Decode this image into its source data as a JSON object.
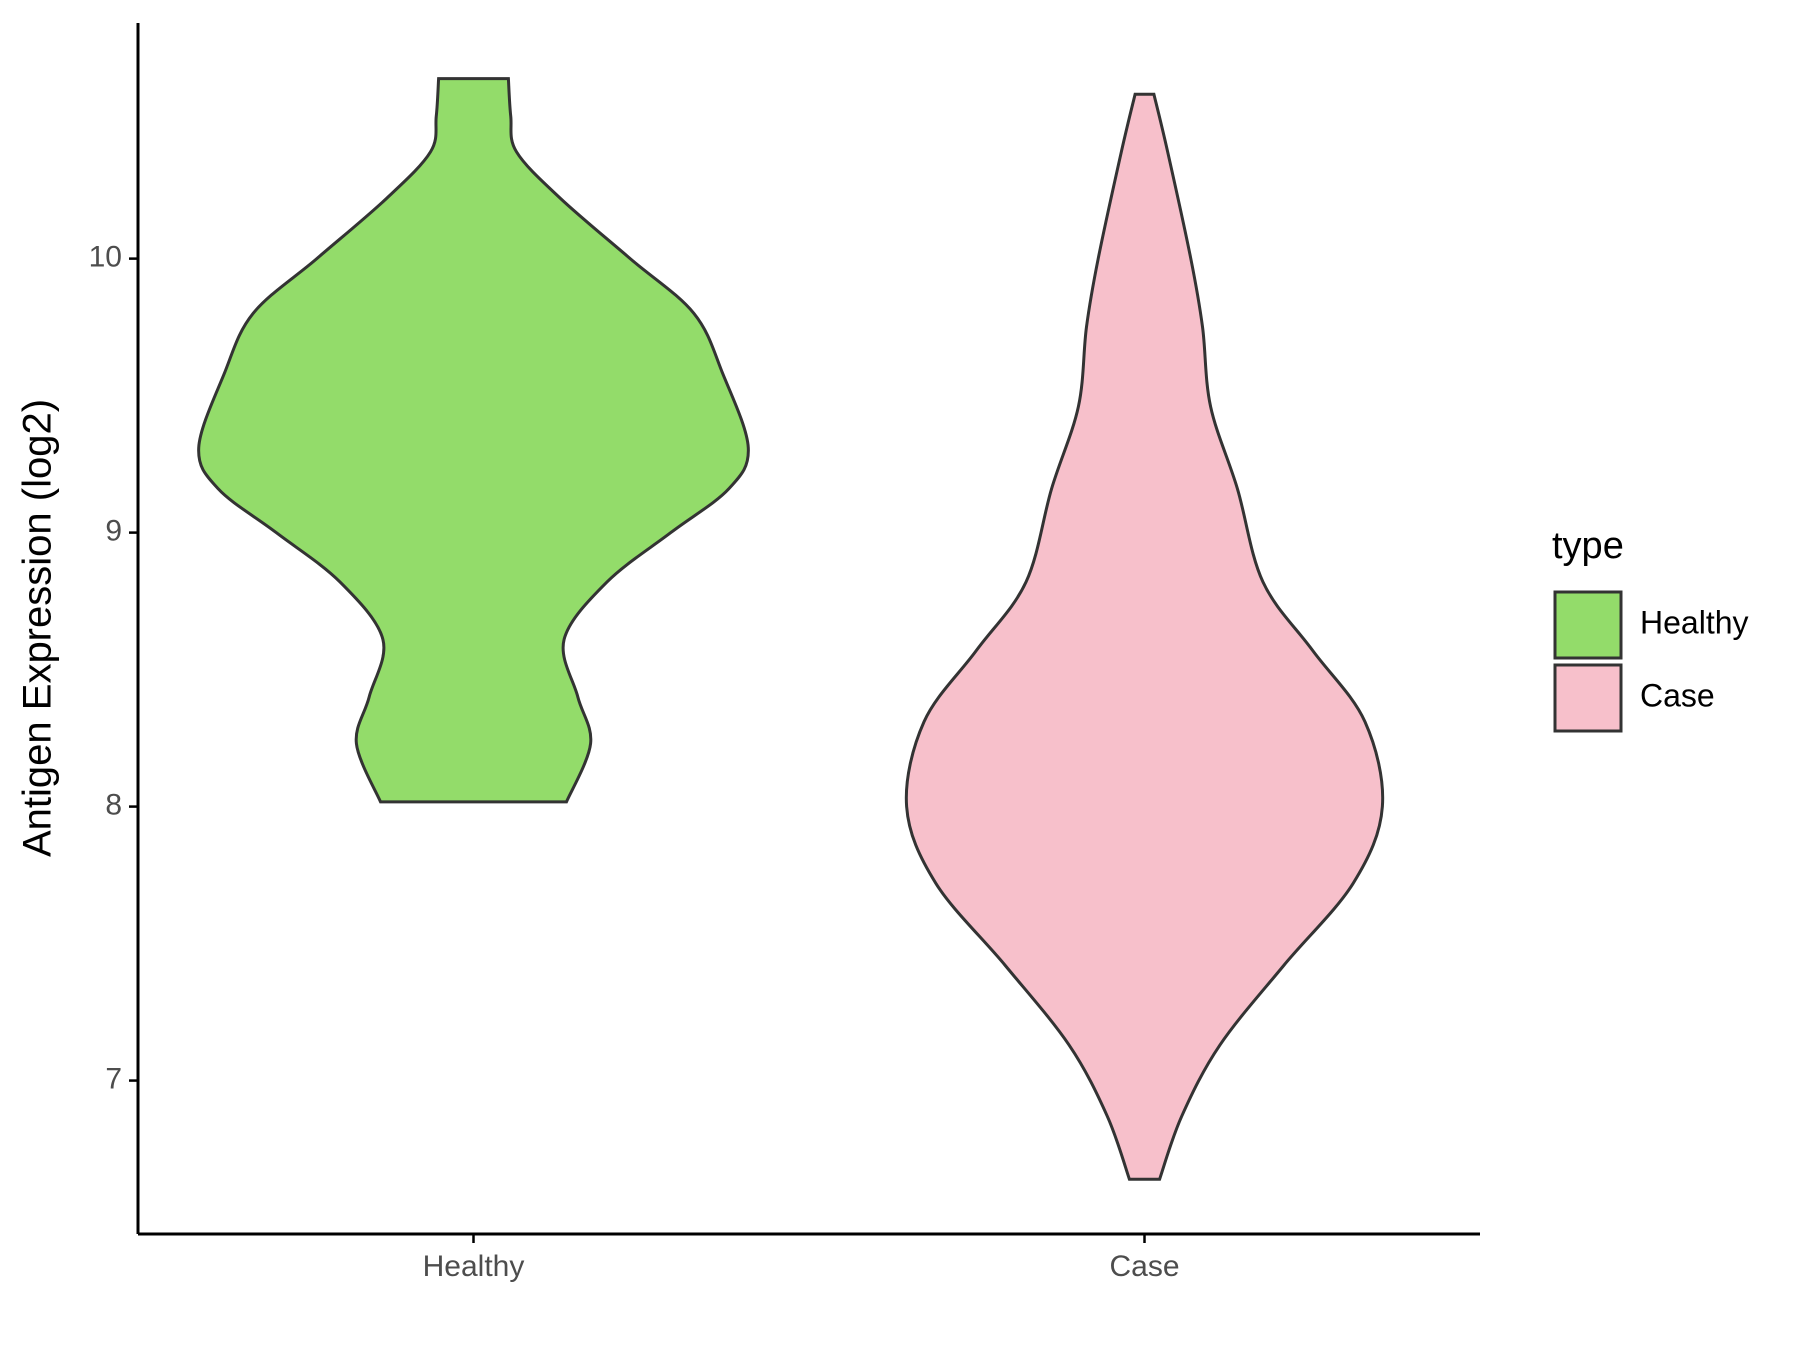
{
  "chart_data": {
    "type": "violin",
    "y_label": "Antigen Expression (log2)",
    "legend_title": "type",
    "categories": [
      "Healthy",
      "Case"
    ],
    "ylim": [
      6.44,
      10.86
    ],
    "yticks": [
      7,
      8,
      9,
      10
    ],
    "series": [
      {
        "name": "Healthy",
        "color": "#93dc6a",
        "y": [
          10.657,
          10.52,
          10.39,
          10.22,
          10.0,
          9.8,
          9.58,
          9.31,
          9.16,
          9.0,
          8.82,
          8.61,
          8.4,
          8.23,
          8.017
        ],
        "width": [
          0.104,
          0.111,
          0.128,
          0.259,
          0.467,
          0.657,
          0.743,
          0.819,
          0.761,
          0.588,
          0.398,
          0.27,
          0.311,
          0.349,
          0.277
        ]
      },
      {
        "name": "Case",
        "color": "#f7c0cb",
        "y": [
          10.6,
          10.39,
          10.0,
          9.75,
          9.46,
          9.16,
          8.82,
          8.57,
          8.31,
          8.0,
          7.72,
          7.42,
          7.13,
          6.87,
          6.64
        ],
        "width": [
          0.028,
          0.069,
          0.138,
          0.173,
          0.197,
          0.277,
          0.353,
          0.501,
          0.657,
          0.709,
          0.622,
          0.415,
          0.225,
          0.111,
          0.045
        ]
      }
    ]
  }
}
